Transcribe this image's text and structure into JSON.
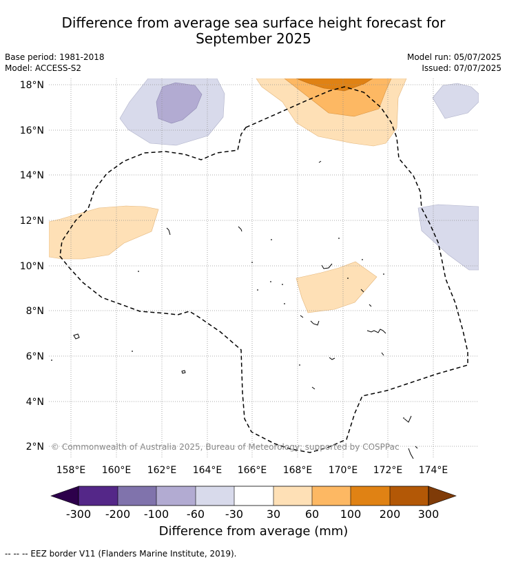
{
  "title_line1": "Difference from average sea surface height forecast for",
  "title_line2": "September 2025",
  "base_period": "Base period: 1981-2018",
  "model": "Model: ACCESS-S2",
  "model_run": "Model run: 05/07/2025",
  "issued": "Issued: 07/07/2025",
  "copyright": "© Commonwealth of Australia 2025, Bureau of Meteorology; supported by COSPPac",
  "lat_labels": [
    "18°N",
    "16°N",
    "14°N",
    "12°N",
    "10°N",
    "8°N",
    "6°N",
    "4°N",
    "2°N"
  ],
  "lon_labels": [
    "158°E",
    "160°E",
    "162°E",
    "164°E",
    "166°E",
    "168°E",
    "170°E",
    "172°E",
    "174°E"
  ],
  "colorbar": {
    "title": "Difference from average (mm)",
    "tick_labels": [
      "-300",
      "-200",
      "-100",
      "-60",
      "-30",
      "30",
      "60",
      "100",
      "200",
      "300"
    ],
    "colors": [
      "#2d004b",
      "#542788",
      "#8073ac",
      "#b2abd2",
      "#d8daeb",
      "#ffffff",
      "#fee0b6",
      "#fdb863",
      "#e08214",
      "#b35806",
      "#7f3b08"
    ]
  },
  "footnote": "--  --  -- EEZ border V11 (Flanders Marine Institute, 2019)."
}
